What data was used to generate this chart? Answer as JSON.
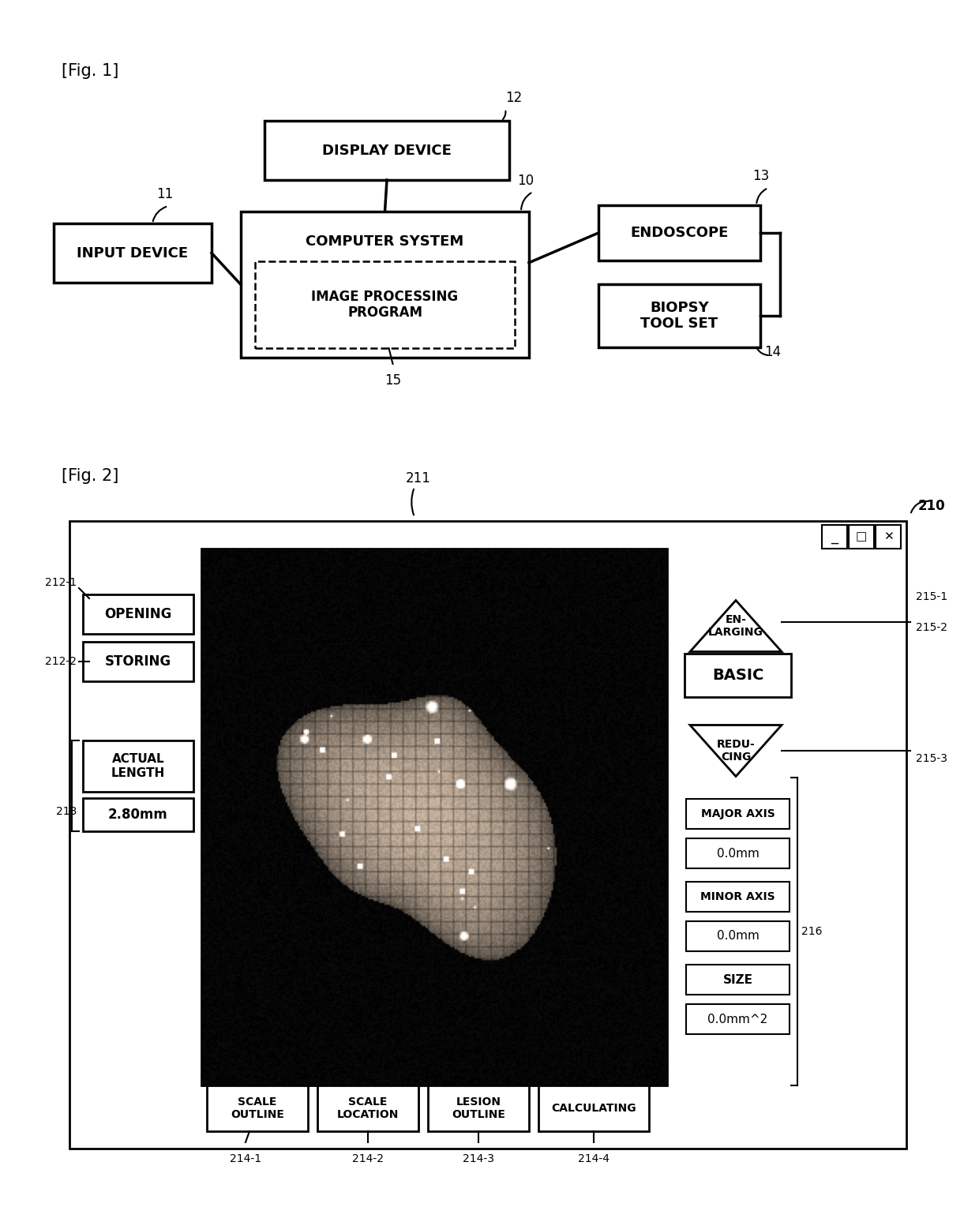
{
  "fig_label1": "[Fig. 1]",
  "fig_label2": "[Fig. 2]",
  "bg_color": "#ffffff",
  "line_color": "#000000",
  "fig1": {
    "display_device": "DISPLAY DEVICE",
    "computer_system": "COMPUTER SYSTEM",
    "image_processing": "IMAGE PROCESSING\nPROGRAM",
    "input_device": "INPUT DEVICE",
    "endoscope": "ENDOSCOPE",
    "biopsy_tool": "BIOPSY\nTOOL SET",
    "nums": {
      "dd": "12",
      "cs": "10",
      "ip": "15",
      "id": "11",
      "en": "13",
      "bt": "14"
    }
  },
  "fig2": {
    "opening": "OPENING",
    "storing": "STORING",
    "actual_length": "ACTUAL\nLENGTH",
    "actual_val": "2.80mm",
    "basic": "BASIC",
    "enlarging": "EN-\nLARGING",
    "reducing": "REDU-\nCING",
    "major_axis": "MAJOR AXIS",
    "major_val": "0.0mm",
    "minor_axis": "MINOR AXIS",
    "minor_val": "0.0mm",
    "size": "SIZE",
    "size_val": "0.0mm^2",
    "scale_outline": "SCALE\nOUTLINE",
    "scale_location": "SCALE\nLOCATION",
    "lesion_outline": "LESION\nOUTLINE",
    "calculating": "CALCULATING",
    "nums": {
      "win": "210",
      "img": "211",
      "open": "212-1",
      "stor": "212-2",
      "al": "213",
      "enlg": "215-1",
      "basic": "215-2",
      "redu": "215-3",
      "data": "216",
      "so": "214-1",
      "sl": "214-2",
      "lo": "214-3",
      "ca": "214-4"
    }
  }
}
